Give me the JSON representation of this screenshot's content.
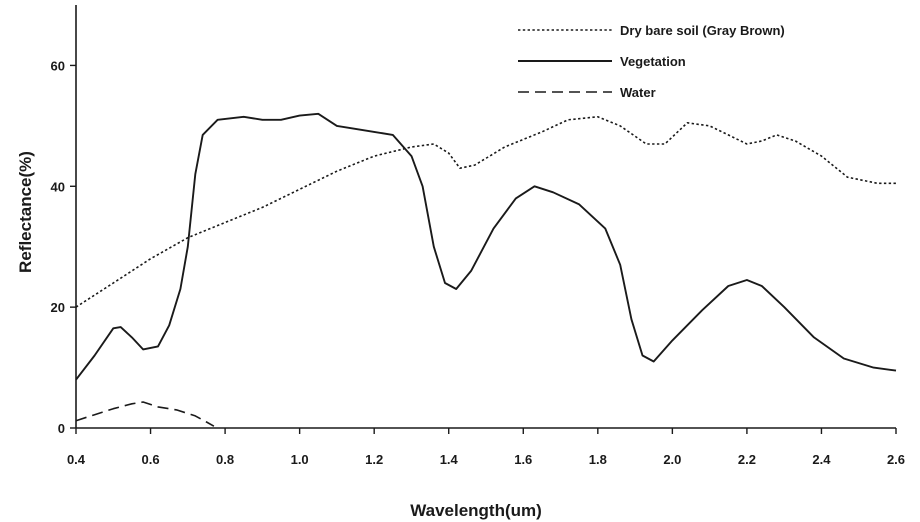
{
  "chart_data": {
    "type": "line",
    "title": "",
    "xlabel": "Wavelength(um)",
    "ylabel": "Reflectance(%)",
    "xlim": [
      0.4,
      2.6
    ],
    "ylim": [
      0,
      70
    ],
    "x_ticks": [
      0.4,
      0.6,
      0.8,
      1.0,
      1.2,
      1.4,
      1.6,
      1.8,
      2.0,
      2.2,
      2.4,
      2.6
    ],
    "x_tick_labels": [
      "0.4",
      "0.6",
      "0.8",
      "1.0",
      "1.2",
      "1.4",
      "1.6",
      "1.8",
      "2.0",
      "2.2",
      "2.4",
      "2.6"
    ],
    "y_ticks": [
      0,
      20,
      40,
      60
    ],
    "y_tick_labels": [
      "0",
      "20",
      "40",
      "60"
    ],
    "grid": false,
    "legend_position": "top-right",
    "series": [
      {
        "name": "Dry bare soil (Gray Brown)",
        "style": "dotted",
        "color": "#1a1a1a",
        "points": [
          [
            0.4,
            20.0
          ],
          [
            0.5,
            24.0
          ],
          [
            0.6,
            28.0
          ],
          [
            0.7,
            31.5
          ],
          [
            0.8,
            34.0
          ],
          [
            0.9,
            36.5
          ],
          [
            1.0,
            39.5
          ],
          [
            1.1,
            42.5
          ],
          [
            1.2,
            45.0
          ],
          [
            1.3,
            46.5
          ],
          [
            1.36,
            47.0
          ],
          [
            1.4,
            45.5
          ],
          [
            1.43,
            43.0
          ],
          [
            1.47,
            43.5
          ],
          [
            1.55,
            46.5
          ],
          [
            1.65,
            49.0
          ],
          [
            1.72,
            51.0
          ],
          [
            1.8,
            51.5
          ],
          [
            1.86,
            50.0
          ],
          [
            1.93,
            47.0
          ],
          [
            1.98,
            47.0
          ],
          [
            2.04,
            50.5
          ],
          [
            2.1,
            50.0
          ],
          [
            2.15,
            48.5
          ],
          [
            2.2,
            47.0
          ],
          [
            2.24,
            47.5
          ],
          [
            2.28,
            48.5
          ],
          [
            2.33,
            47.5
          ],
          [
            2.4,
            45.0
          ],
          [
            2.47,
            41.5
          ],
          [
            2.55,
            40.5
          ],
          [
            2.6,
            40.5
          ]
        ]
      },
      {
        "name": "Vegetation",
        "style": "solid",
        "color": "#1a1a1a",
        "points": [
          [
            0.4,
            8.0
          ],
          [
            0.45,
            12.0
          ],
          [
            0.5,
            16.5
          ],
          [
            0.52,
            16.7
          ],
          [
            0.55,
            15.0
          ],
          [
            0.58,
            13.0
          ],
          [
            0.62,
            13.5
          ],
          [
            0.65,
            17.0
          ],
          [
            0.68,
            23.0
          ],
          [
            0.7,
            30.0
          ],
          [
            0.72,
            42.0
          ],
          [
            0.74,
            48.5
          ],
          [
            0.78,
            51.0
          ],
          [
            0.85,
            51.5
          ],
          [
            0.9,
            51.0
          ],
          [
            0.95,
            51.0
          ],
          [
            1.0,
            51.7
          ],
          [
            1.05,
            52.0
          ],
          [
            1.1,
            50.0
          ],
          [
            1.2,
            49.0
          ],
          [
            1.25,
            48.5
          ],
          [
            1.3,
            45.0
          ],
          [
            1.33,
            40.0
          ],
          [
            1.36,
            30.0
          ],
          [
            1.39,
            24.0
          ],
          [
            1.42,
            23.0
          ],
          [
            1.46,
            26.0
          ],
          [
            1.52,
            33.0
          ],
          [
            1.58,
            38.0
          ],
          [
            1.63,
            40.0
          ],
          [
            1.68,
            39.0
          ],
          [
            1.75,
            37.0
          ],
          [
            1.82,
            33.0
          ],
          [
            1.86,
            27.0
          ],
          [
            1.89,
            18.0
          ],
          [
            1.92,
            12.0
          ],
          [
            1.95,
            11.0
          ],
          [
            2.0,
            14.5
          ],
          [
            2.08,
            19.5
          ],
          [
            2.15,
            23.5
          ],
          [
            2.2,
            24.5
          ],
          [
            2.24,
            23.5
          ],
          [
            2.3,
            20.0
          ],
          [
            2.38,
            15.0
          ],
          [
            2.46,
            11.5
          ],
          [
            2.54,
            10.0
          ],
          [
            2.6,
            9.5
          ]
        ]
      },
      {
        "name": "Water",
        "style": "dashed",
        "color": "#1a1a1a",
        "points": [
          [
            0.4,
            1.2
          ],
          [
            0.45,
            2.2
          ],
          [
            0.5,
            3.2
          ],
          [
            0.55,
            4.0
          ],
          [
            0.58,
            4.3
          ],
          [
            0.62,
            3.5
          ],
          [
            0.67,
            3.0
          ],
          [
            0.72,
            2.0
          ],
          [
            0.75,
            1.0
          ],
          [
            0.77,
            0.3
          ]
        ]
      }
    ]
  }
}
